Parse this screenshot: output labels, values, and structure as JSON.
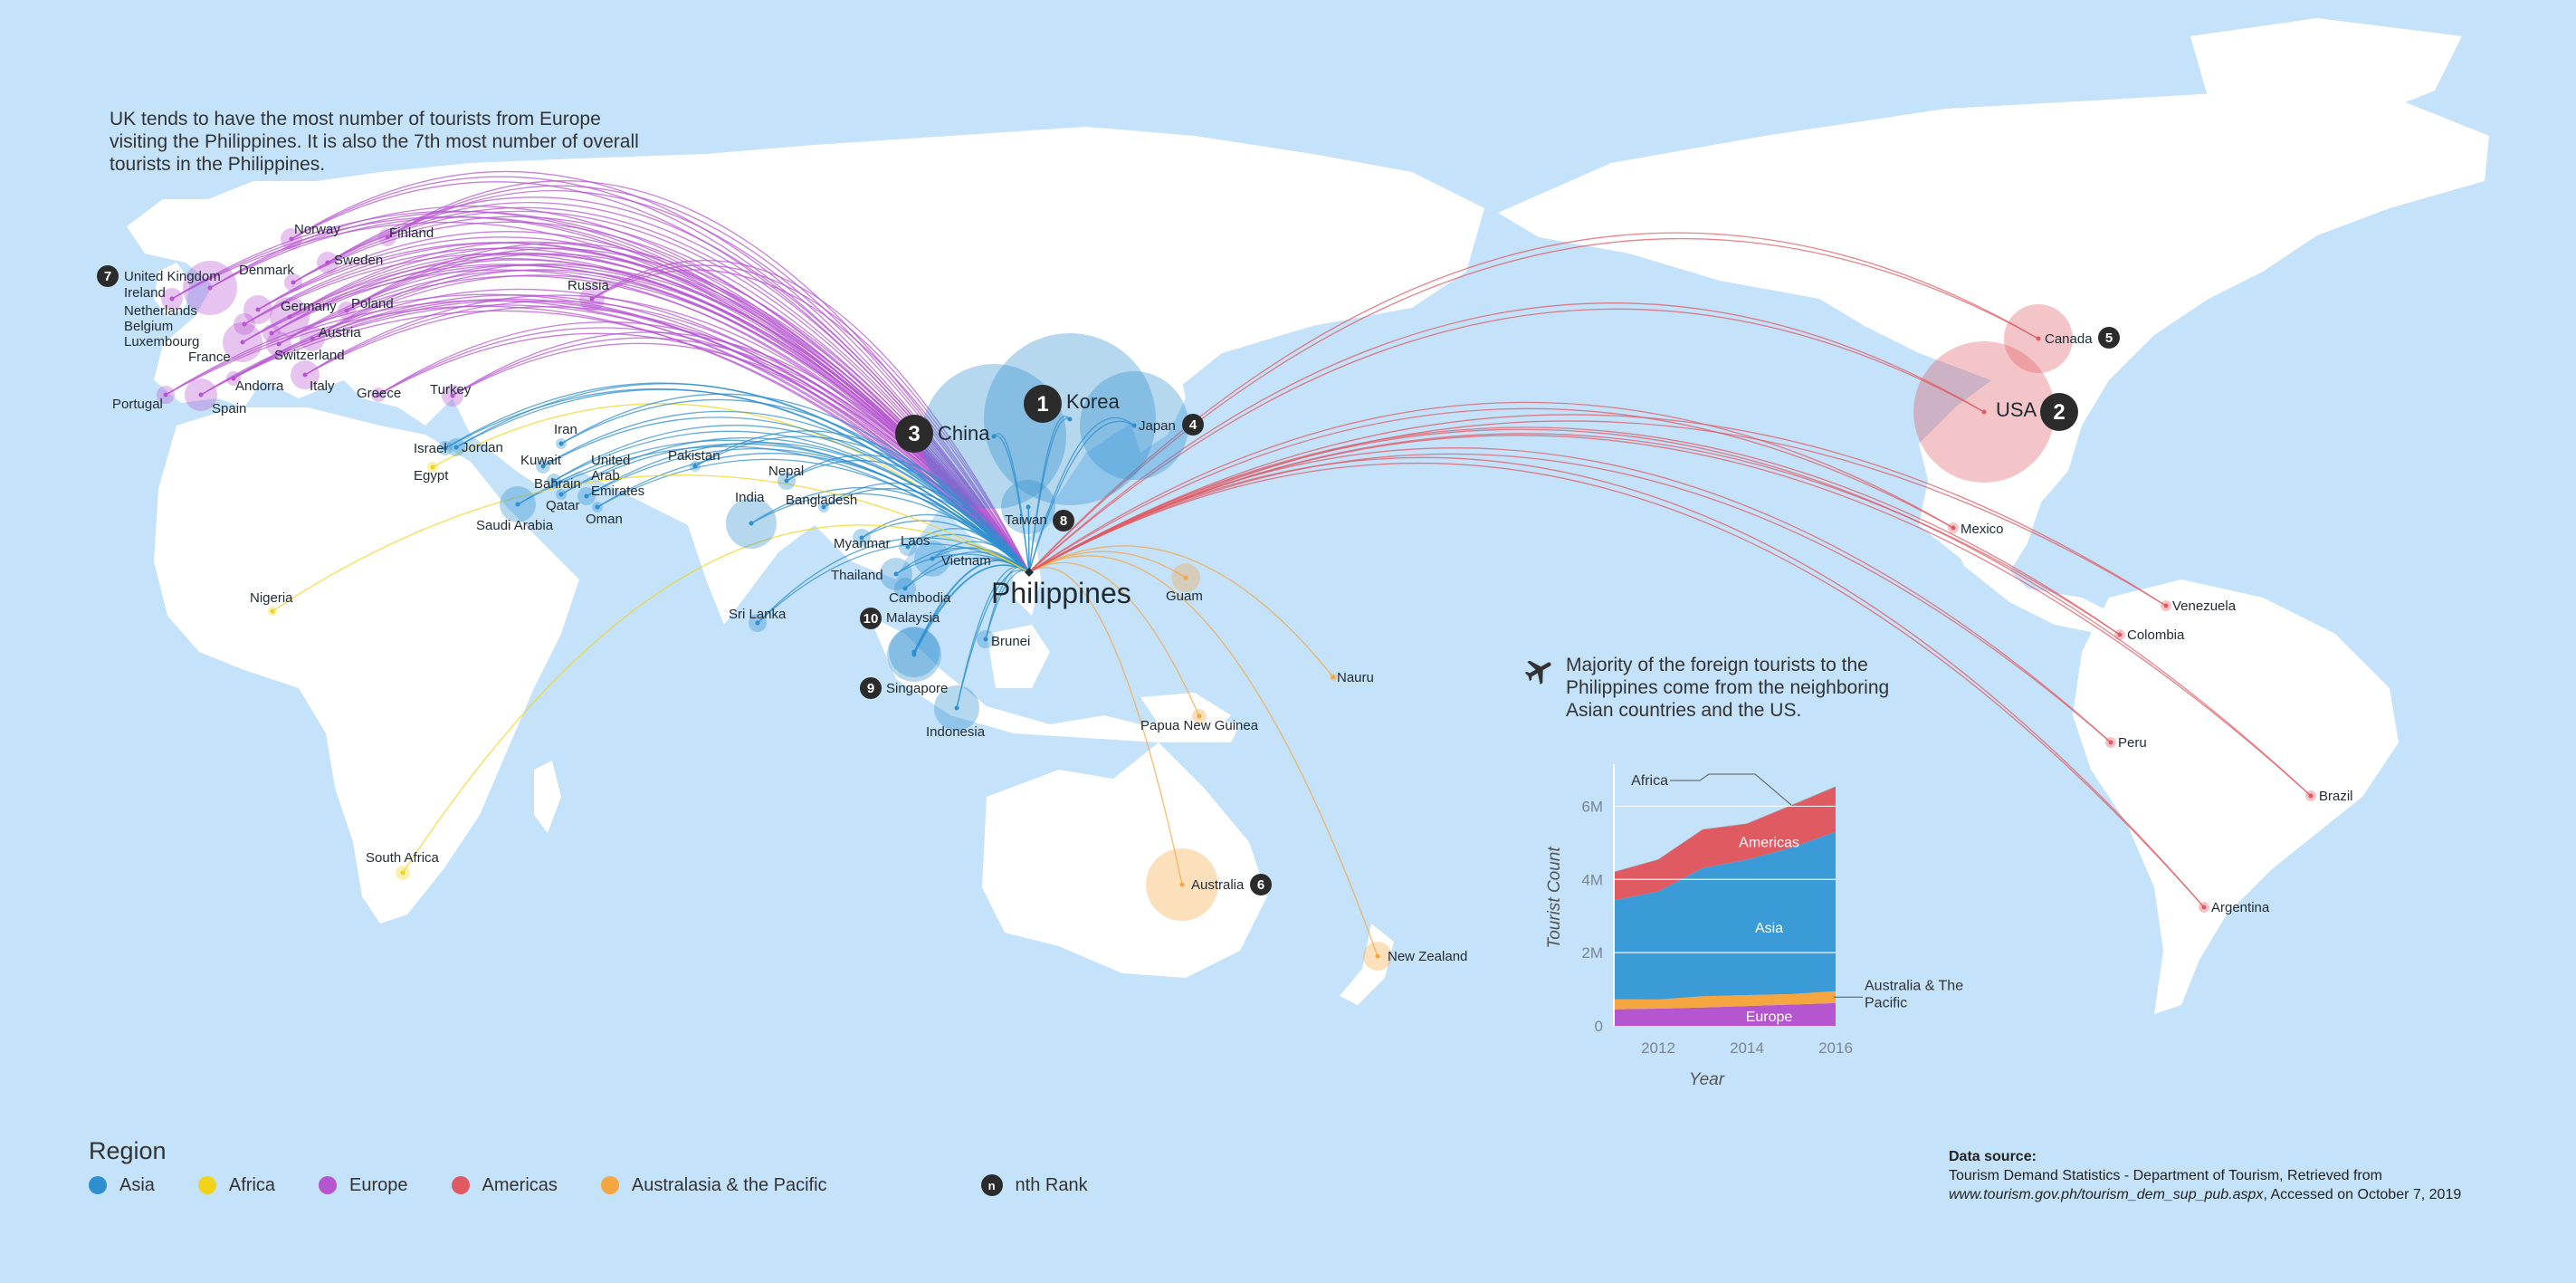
{
  "annotation_top": "UK tends to have the most number of tourists from Europe visiting the Philippines. It is also the 7th most number of overall tourists in the Philippines.",
  "annotation_chart": "Majority of the foreign tourists to the Philippines come from the neighboring Asian countries and the US.",
  "hub_label": "Philippines",
  "colors": {
    "asia": "#2e8fcf",
    "africa": "#f2d31b",
    "europe": "#b655d0",
    "americas": "#e05a62",
    "australasia": "#f5a640",
    "rank": "#2b2b2b",
    "land": "#ffffff",
    "sea": "#c4e2fa"
  },
  "countries": [
    {
      "name": "China",
      "region": "asia",
      "rank": 3,
      "big": true
    },
    {
      "name": "Korea",
      "region": "asia",
      "rank": 1,
      "big": true
    },
    {
      "name": "Japan",
      "region": "asia",
      "rank": 4
    },
    {
      "name": "Taiwan",
      "region": "asia",
      "rank": 8
    },
    {
      "name": "USA",
      "region": "americas",
      "rank": 2,
      "big": true
    },
    {
      "name": "Canada",
      "region": "americas",
      "rank": 5
    },
    {
      "name": "Australia",
      "region": "australasia",
      "rank": 6
    },
    {
      "name": "United Kingdom",
      "region": "europe",
      "rank": 7
    },
    {
      "name": "Singapore",
      "region": "asia",
      "rank": 9
    },
    {
      "name": "Malaysia",
      "region": "asia",
      "rank": 10
    },
    {
      "name": "Norway",
      "region": "europe"
    },
    {
      "name": "Finland",
      "region": "europe"
    },
    {
      "name": "Denmark",
      "region": "europe"
    },
    {
      "name": "Sweden",
      "region": "europe"
    },
    {
      "name": "Ireland",
      "region": "europe"
    },
    {
      "name": "Netherlands",
      "region": "europe"
    },
    {
      "name": "Germany",
      "region": "europe"
    },
    {
      "name": "Poland",
      "region": "europe"
    },
    {
      "name": "Belgium",
      "region": "europe"
    },
    {
      "name": "Luxembourg",
      "region": "europe"
    },
    {
      "name": "Austria",
      "region": "europe"
    },
    {
      "name": "France",
      "region": "europe"
    },
    {
      "name": "Switzerland",
      "region": "europe"
    },
    {
      "name": "Andorra",
      "region": "europe"
    },
    {
      "name": "Italy",
      "region": "europe"
    },
    {
      "name": "Portugal",
      "region": "europe"
    },
    {
      "name": "Spain",
      "region": "europe"
    },
    {
      "name": "Greece",
      "region": "europe"
    },
    {
      "name": "Turkey",
      "region": "europe"
    },
    {
      "name": "Russia",
      "region": "europe"
    },
    {
      "name": "Israel",
      "region": "asia"
    },
    {
      "name": "Jordan",
      "region": "asia"
    },
    {
      "name": "Egypt",
      "region": "africa"
    },
    {
      "name": "Iran",
      "region": "asia"
    },
    {
      "name": "Kuwait",
      "region": "asia"
    },
    {
      "name": "Bahrain",
      "region": "asia"
    },
    {
      "name": "Qatar",
      "region": "asia"
    },
    {
      "name": "United Arab Emirates",
      "region": "asia"
    },
    {
      "name": "Oman",
      "region": "asia"
    },
    {
      "name": "Saudi Arabia",
      "region": "asia"
    },
    {
      "name": "Pakistan",
      "region": "asia"
    },
    {
      "name": "Nepal",
      "region": "asia"
    },
    {
      "name": "India",
      "region": "asia"
    },
    {
      "name": "Bangladesh",
      "region": "asia"
    },
    {
      "name": "Myanmar",
      "region": "asia"
    },
    {
      "name": "Laos",
      "region": "asia"
    },
    {
      "name": "Thailand",
      "region": "asia"
    },
    {
      "name": "Vietnam",
      "region": "asia"
    },
    {
      "name": "Cambodia",
      "region": "asia"
    },
    {
      "name": "Sri Lanka",
      "region": "asia"
    },
    {
      "name": "Brunei",
      "region": "asia"
    },
    {
      "name": "Indonesia",
      "region": "asia"
    },
    {
      "name": "Nigeria",
      "region": "africa"
    },
    {
      "name": "South Africa",
      "region": "africa"
    },
    {
      "name": "Guam",
      "region": "australasia"
    },
    {
      "name": "Nauru",
      "region": "australasia"
    },
    {
      "name": "Papua New Guinea",
      "region": "australasia"
    },
    {
      "name": "New Zealand",
      "region": "australasia"
    },
    {
      "name": "Mexico",
      "region": "americas"
    },
    {
      "name": "Venezuela",
      "region": "americas"
    },
    {
      "name": "Colombia",
      "region": "americas"
    },
    {
      "name": "Peru",
      "region": "americas"
    },
    {
      "name": "Brazil",
      "region": "americas"
    },
    {
      "name": "Argentina",
      "region": "americas"
    }
  ],
  "legend": {
    "title": "Region",
    "items": [
      {
        "label": "Asia",
        "color": "#2e8fcf"
      },
      {
        "label": "Africa",
        "color": "#f2d31b"
      },
      {
        "label": "Europe",
        "color": "#b655d0"
      },
      {
        "label": "Americas",
        "color": "#e05a62"
      },
      {
        "label": "Australasia & the Pacific",
        "color": "#f5a640"
      }
    ],
    "rank_symbol": "n",
    "rank_label": "nth Rank"
  },
  "source": {
    "heading": "Data source:",
    "line1": "Tourism Demand Statistics - Department of Tourism, Retrieved from",
    "url": "www.tourism.gov.ph/tourism_dem_sup_pub.aspx",
    "accessed": ", Accessed on October 7, 2019"
  },
  "chart_data": {
    "type": "area",
    "stacked": true,
    "xlabel": "Year",
    "ylabel": "Tourist Count",
    "x": [
      2011,
      2012,
      2013,
      2014,
      2015,
      2016
    ],
    "xticks": [
      "2012",
      "2014",
      "2016"
    ],
    "xtick_values": [
      2012,
      2014,
      2016
    ],
    "yticks": [
      "0",
      "2M",
      "4M",
      "6M"
    ],
    "ytick_values": [
      0,
      2000000,
      4000000,
      6000000
    ],
    "ylim": [
      0,
      7000000
    ],
    "grid": true,
    "series": [
      {
        "name": "Europe",
        "color": "#b655d0",
        "values": [
          450000,
          470000,
          500000,
          540000,
          580000,
          620000
        ],
        "label_inside": true
      },
      {
        "name": "Australia & The Pacific",
        "color": "#f5a640",
        "values": [
          280000,
          250000,
          310000,
          300000,
          290000,
          330000
        ],
        "label_inside": false
      },
      {
        "name": "Asia",
        "color": "#3a9bd6",
        "values": [
          2700000,
          2950000,
          3500000,
          3700000,
          4000000,
          4350000
        ],
        "label_inside": true
      },
      {
        "name": "Americas",
        "color": "#e05a62",
        "values": [
          770000,
          870000,
          1050000,
          980000,
          1150000,
          1230000
        ],
        "label_inside": true
      },
      {
        "name": "Africa",
        "color": "#9aa3ad",
        "values": [
          10000,
          10000,
          12000,
          12000,
          14000,
          15000
        ],
        "label_inside": false
      }
    ]
  }
}
